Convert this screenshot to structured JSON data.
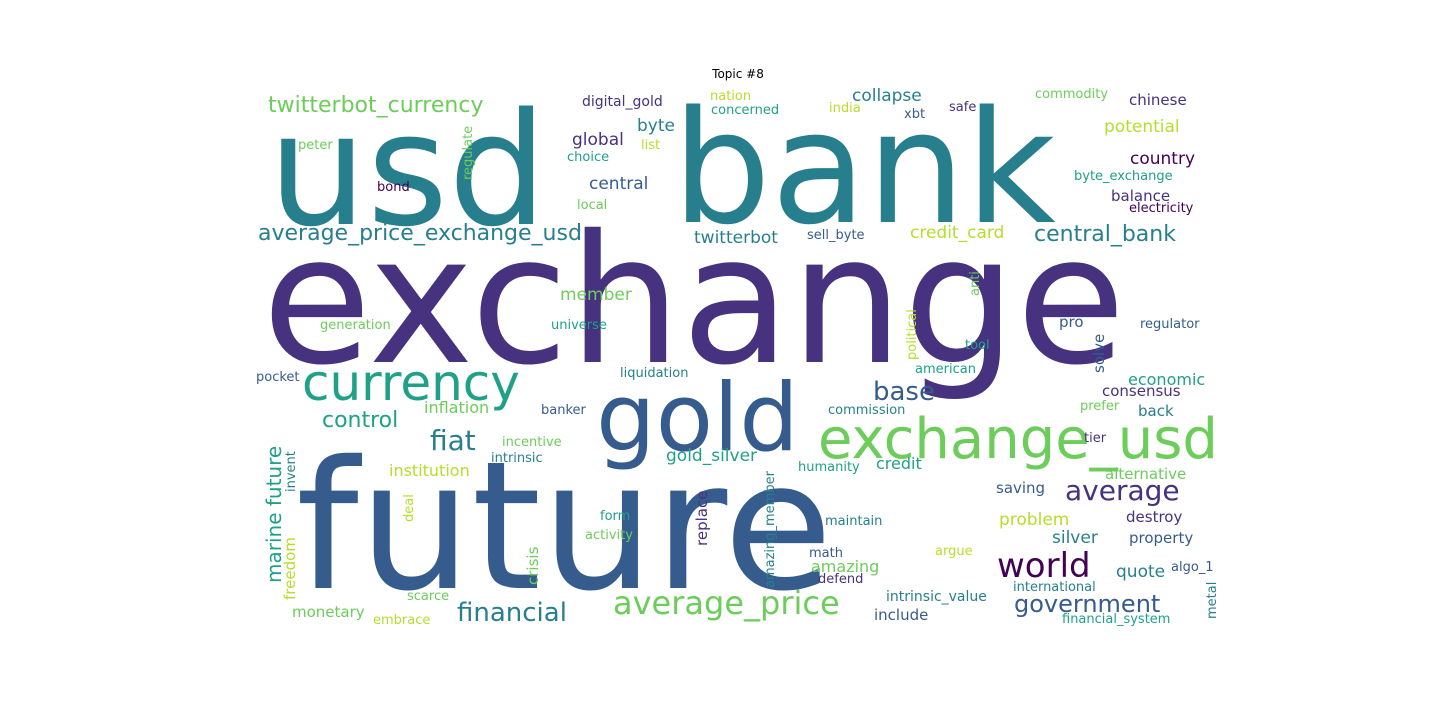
{
  "title": "Topic #8",
  "words": [
    {
      "text": "exchange",
      "color": "#46327e"
    },
    {
      "text": "future",
      "color": "#365c8d"
    },
    {
      "text": "usd",
      "color": "#277f8e"
    },
    {
      "text": "bank",
      "color": "#277f8e"
    },
    {
      "text": "gold",
      "color": "#365c8d"
    },
    {
      "text": "exchange_usd",
      "color": "#6ccd5a"
    },
    {
      "text": "currency",
      "color": "#1fa187"
    },
    {
      "text": "world",
      "color": "#440154"
    },
    {
      "text": "average_price",
      "color": "#6ccd5a"
    },
    {
      "text": "average",
      "color": "#46327e"
    },
    {
      "text": "fiat",
      "color": "#277f8e"
    },
    {
      "text": "base",
      "color": "#365c8d"
    },
    {
      "text": "financial",
      "color": "#277f8e"
    },
    {
      "text": "government",
      "color": "#365c8d"
    },
    {
      "text": "control",
      "color": "#1fa187"
    },
    {
      "text": "twitterbot_currency",
      "color": "#6ccd5a"
    },
    {
      "text": "average_price_exchange_usd",
      "color": "#277f8e"
    },
    {
      "text": "central_bank",
      "color": "#277f8e"
    },
    {
      "text": "marine future",
      "color": "#1fa187"
    },
    {
      "text": "member",
      "color": "#6ccd5a"
    },
    {
      "text": "global",
      "color": "#46327e"
    },
    {
      "text": "central",
      "color": "#365c8d"
    },
    {
      "text": "byte",
      "color": "#277f8e"
    },
    {
      "text": "collapse",
      "color": "#277f8e"
    },
    {
      "text": "credit_card",
      "color": "#b5de2b"
    },
    {
      "text": "twitterbot",
      "color": "#277f8e"
    },
    {
      "text": "gold_silver",
      "color": "#1fa187"
    },
    {
      "text": "potential",
      "color": "#b5de2b"
    },
    {
      "text": "country",
      "color": "#440154"
    },
    {
      "text": "chinese",
      "color": "#46327e"
    },
    {
      "text": "problem",
      "color": "#b5de2b"
    },
    {
      "text": "silver",
      "color": "#277f8e"
    },
    {
      "text": "quote",
      "color": "#277f8e"
    },
    {
      "text": "economic",
      "color": "#1fa187"
    },
    {
      "text": "institution",
      "color": "#b5de2b"
    },
    {
      "text": "inflation",
      "color": "#6ccd5a"
    },
    {
      "text": "credit",
      "color": "#1fa187"
    },
    {
      "text": "amazing",
      "color": "#6ccd5a"
    },
    {
      "text": "monetary",
      "color": "#6ccd5a"
    },
    {
      "text": "freedom",
      "color": "#b5de2b"
    },
    {
      "text": "crisis",
      "color": "#6ccd5a"
    },
    {
      "text": "replace",
      "color": "#46327e"
    },
    {
      "text": "saving",
      "color": "#365c8d"
    },
    {
      "text": "destroy",
      "color": "#46327e"
    },
    {
      "text": "property",
      "color": "#365c8d"
    },
    {
      "text": "include",
      "color": "#365c8d"
    },
    {
      "text": "consensus",
      "color": "#46327e"
    },
    {
      "text": "back",
      "color": "#277f8e"
    },
    {
      "text": "alternative",
      "color": "#6ccd5a"
    },
    {
      "text": "balance",
      "color": "#46327e"
    },
    {
      "text": "solve",
      "color": "#365c8d"
    },
    {
      "text": "pro",
      "color": "#365c8d"
    },
    {
      "text": "intrinsic_value",
      "color": "#277f8e"
    },
    {
      "text": "digital_gold",
      "color": "#46327e"
    },
    {
      "text": "liquidation",
      "color": "#277f8e"
    },
    {
      "text": "universe",
      "color": "#1fa187"
    },
    {
      "text": "generation",
      "color": "#6ccd5a"
    },
    {
      "text": "banker",
      "color": "#365c8d"
    },
    {
      "text": "commission",
      "color": "#277f8e"
    },
    {
      "text": "political",
      "color": "#b5de2b"
    },
    {
      "text": "american",
      "color": "#1fa187"
    },
    {
      "text": "tool",
      "color": "#1fa187"
    },
    {
      "text": "anti",
      "color": "#6ccd5a"
    },
    {
      "text": "regulator",
      "color": "#365c8d"
    },
    {
      "text": "safe",
      "color": "#46327e"
    },
    {
      "text": "xbt",
      "color": "#365c8d"
    },
    {
      "text": "nation",
      "color": "#b5de2b"
    },
    {
      "text": "concerned",
      "color": "#1fa187"
    },
    {
      "text": "india",
      "color": "#b5de2b"
    },
    {
      "text": "commodity",
      "color": "#6ccd5a"
    },
    {
      "text": "peter",
      "color": "#6ccd5a"
    },
    {
      "text": "regulate",
      "color": "#6ccd5a"
    },
    {
      "text": "choice",
      "color": "#1fa187"
    },
    {
      "text": "list",
      "color": "#b5de2b"
    },
    {
      "text": "bond",
      "color": "#440154"
    },
    {
      "text": "local",
      "color": "#6ccd5a"
    },
    {
      "text": "byte_exchange",
      "color": "#1fa187"
    },
    {
      "text": "electricity",
      "color": "#440154"
    },
    {
      "text": "sell_byte",
      "color": "#365c8d"
    },
    {
      "text": "pocket",
      "color": "#365c8d"
    },
    {
      "text": "incentive",
      "color": "#6ccd5a"
    },
    {
      "text": "intrinsic",
      "color": "#277f8e"
    },
    {
      "text": "invent",
      "color": "#277f8e"
    },
    {
      "text": "deal",
      "color": "#b5de2b"
    },
    {
      "text": "form",
      "color": "#1fa187"
    },
    {
      "text": "activity",
      "color": "#6ccd5a"
    },
    {
      "text": "humanity",
      "color": "#1fa187"
    },
    {
      "text": "maintain",
      "color": "#277f8e"
    },
    {
      "text": "amazing_member",
      "color": "#277f8e"
    },
    {
      "text": "math",
      "color": "#365c8d"
    },
    {
      "text": "defend",
      "color": "#46327e"
    },
    {
      "text": "argue",
      "color": "#b5de2b"
    },
    {
      "text": "international",
      "color": "#277f8e"
    },
    {
      "text": "algo_1",
      "color": "#365c8d"
    },
    {
      "text": "metal",
      "color": "#277f8e"
    },
    {
      "text": "financial_system",
      "color": "#1fa187"
    },
    {
      "text": "scarce",
      "color": "#6ccd5a"
    },
    {
      "text": "embrace",
      "color": "#b5de2b"
    },
    {
      "text": "prefer",
      "color": "#6ccd5a"
    },
    {
      "text": "tier",
      "color": "#46327e"
    }
  ]
}
